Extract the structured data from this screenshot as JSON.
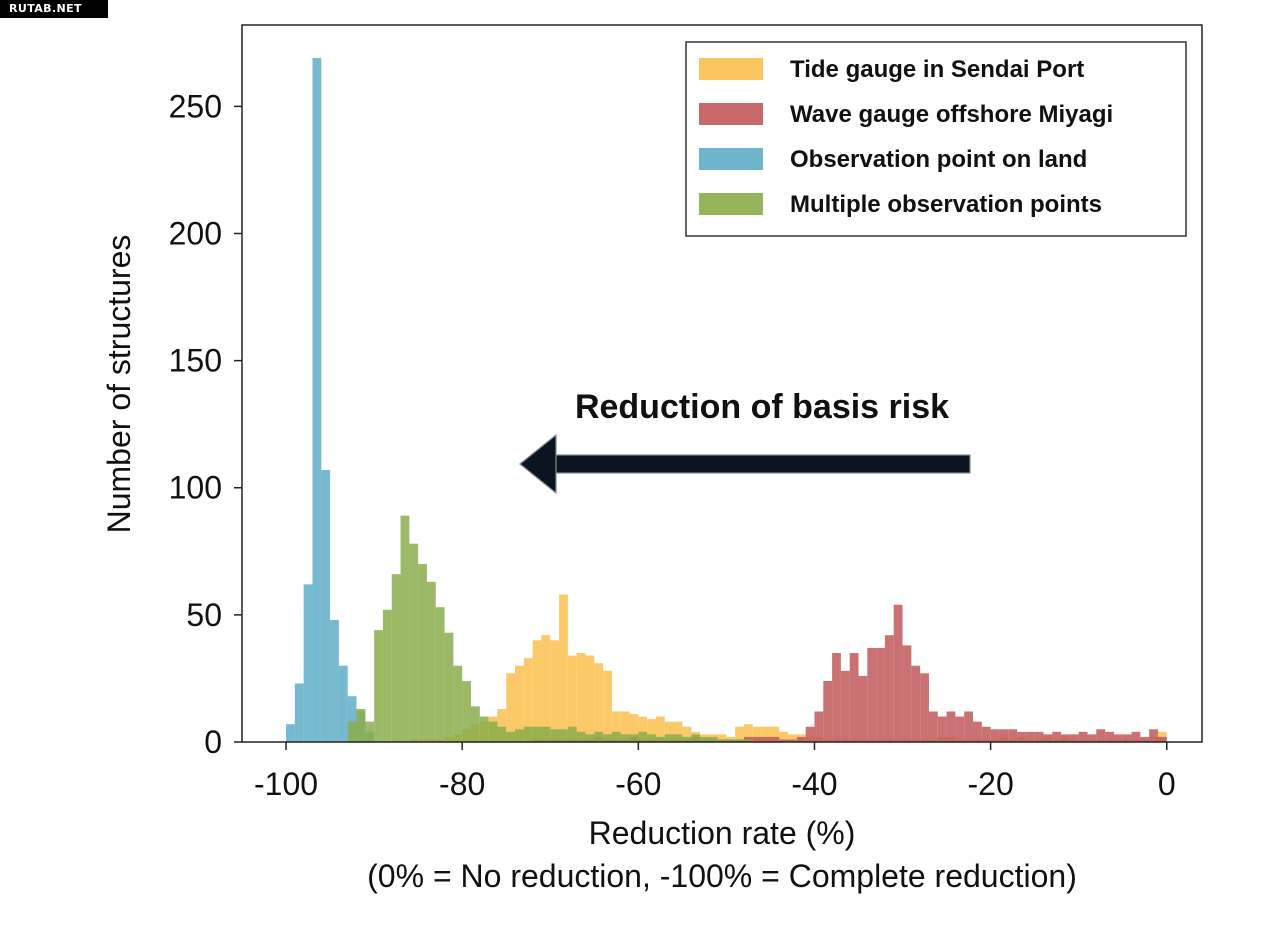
{
  "watermark": "RUTAB.NET",
  "chart_data": {
    "type": "bar",
    "subtype": "overlapping histogram",
    "title": "",
    "xlabel": "Reduction rate (%)",
    "xlabel2": "(0% = No reduction, -100% = Complete reduction)",
    "ylabel": "Number of structures",
    "xlim": [
      -105,
      4
    ],
    "ylim": [
      0,
      282
    ],
    "xticks": [
      -100,
      -80,
      -60,
      -40,
      -20,
      0
    ],
    "yticks": [
      0,
      50,
      100,
      150,
      200,
      250
    ],
    "bin_width": 1,
    "grid": false,
    "legend_position": "top-right",
    "annotation": {
      "text": "Reduction of basis risk",
      "arrow": "pointing left"
    },
    "series": [
      {
        "name": "Tide gauge in Sendai Port",
        "color": "#fbbf4f",
        "x": [
          -86,
          -85,
          -84,
          -83,
          -82,
          -81,
          -80,
          -79,
          -78,
          -77,
          -76,
          -75,
          -74,
          -73,
          -72,
          -71,
          -70,
          -69,
          -68,
          -67,
          -66,
          -65,
          -64,
          -63,
          -62,
          -61,
          -60,
          -59,
          -58,
          -57,
          -56,
          -55,
          -54,
          -53,
          -52,
          -51,
          -50,
          -49,
          -48,
          -47,
          -46,
          -45,
          -44,
          -43,
          -42,
          -41,
          -40,
          -39,
          -38,
          -37,
          -36,
          -35,
          -34,
          -33,
          -32,
          -31,
          -30,
          -29,
          -28,
          -27,
          -26,
          -25,
          -24,
          -23,
          -22,
          -21,
          -20,
          -19,
          -18,
          -17,
          -16,
          -15,
          -14,
          -13,
          -12,
          -11,
          -10,
          -9,
          -8,
          -7,
          -6,
          -5,
          -4,
          -3,
          -2,
          -1
        ],
        "values": [
          1,
          1,
          1,
          1,
          2,
          3,
          5,
          7,
          8,
          10,
          13,
          27,
          30,
          33,
          40,
          42,
          40,
          58,
          34,
          35,
          34,
          31,
          28,
          12,
          12,
          11,
          10,
          9,
          10,
          8,
          8,
          6,
          4,
          3,
          3,
          3,
          2,
          6,
          7,
          6,
          6,
          6,
          4,
          3,
          3,
          2,
          2,
          1,
          1,
          1,
          1,
          1,
          1,
          1,
          1,
          1,
          1,
          1,
          1,
          1,
          2,
          2,
          1,
          1,
          1,
          1,
          1,
          2,
          1,
          2,
          1,
          1,
          2,
          1,
          2,
          1,
          1,
          1,
          1,
          1,
          1,
          1,
          1,
          1,
          2,
          4
        ]
      },
      {
        "name": "Wave gauge offshore Miyagi",
        "color": "#c1585a",
        "x": [
          -72,
          -71,
          -70,
          -69,
          -68,
          -67,
          -66,
          -65,
          -64,
          -63,
          -62,
          -61,
          -60,
          -59,
          -58,
          -57,
          -56,
          -55,
          -54,
          -53,
          -52,
          -51,
          -50,
          -49,
          -48,
          -47,
          -46,
          -45,
          -44,
          -43,
          -42,
          -41,
          -40,
          -39,
          -38,
          -37,
          -36,
          -35,
          -34,
          -33,
          -32,
          -31,
          -30,
          -29,
          -28,
          -27,
          -26,
          -25,
          -24,
          -23,
          -22,
          -21,
          -20,
          -19,
          -18,
          -17,
          -16,
          -15,
          -14,
          -13,
          -12,
          -11,
          -10,
          -9,
          -8,
          -7,
          -6,
          -5,
          -4,
          -3,
          -2,
          -1
        ],
        "values": [
          1,
          1,
          1,
          1,
          1,
          1,
          1,
          2,
          1,
          1,
          1,
          2,
          1,
          1,
          1,
          1,
          1,
          1,
          2,
          1,
          1,
          1,
          1,
          1,
          2,
          2,
          2,
          2,
          1,
          1,
          2,
          6,
          12,
          24,
          35,
          28,
          35,
          26,
          37,
          37,
          42,
          54,
          38,
          30,
          27,
          12,
          10,
          12,
          10,
          12,
          8,
          6,
          5,
          5,
          5,
          4,
          4,
          4,
          3,
          4,
          3,
          3,
          4,
          3,
          5,
          4,
          3,
          3,
          4,
          2,
          5,
          2
        ]
      },
      {
        "name": "Observation point on land",
        "color": "#5faec8",
        "x": [
          -100,
          -99,
          -98,
          -97,
          -96,
          -95,
          -94,
          -93,
          -92,
          -91
        ],
        "values": [
          7,
          23,
          62,
          269,
          107,
          48,
          30,
          18,
          12,
          4
        ]
      },
      {
        "name": "Multiple observation points",
        "color": "#8aad4b",
        "x": [
          -93,
          -92,
          -91,
          -90,
          -89,
          -88,
          -87,
          -86,
          -85,
          -84,
          -83,
          -82,
          -81,
          -80,
          -79,
          -78,
          -77,
          -76,
          -75,
          -74,
          -73,
          -72,
          -71,
          -70,
          -69,
          -68,
          -67,
          -66,
          -65,
          -64,
          -63,
          -62,
          -61,
          -60,
          -59,
          -58,
          -57,
          -56,
          -55,
          -54,
          -53,
          -52,
          -51,
          -50,
          -49,
          -48
        ],
        "values": [
          8,
          13,
          8,
          44,
          52,
          66,
          89,
          78,
          70,
          63,
          53,
          43,
          30,
          24,
          14,
          10,
          8,
          6,
          4,
          5,
          6,
          6,
          6,
          5,
          5,
          6,
          4,
          3,
          4,
          3,
          4,
          3,
          3,
          4,
          3,
          2,
          3,
          3,
          2,
          3,
          2,
          2,
          1,
          1,
          1,
          1
        ]
      }
    ]
  }
}
